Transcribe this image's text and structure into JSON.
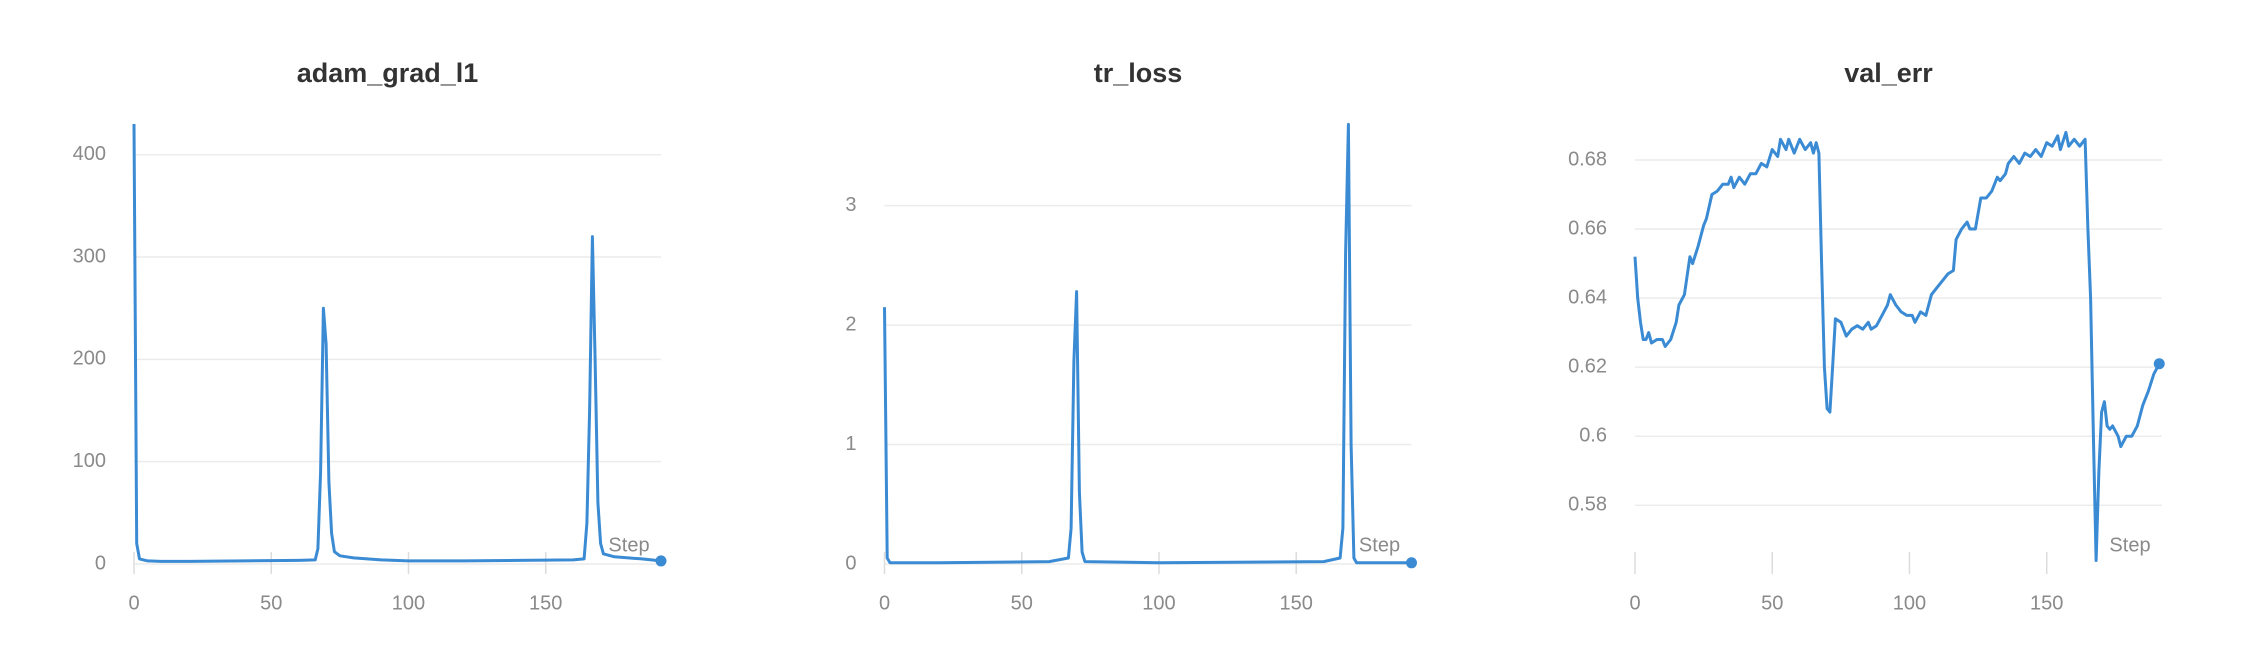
{
  "chart_data": [
    {
      "type": "line",
      "title": "adam_grad_l1",
      "x_label": "Step",
      "grid": true,
      "color": "#3a8bd4",
      "xlim": [
        0,
        192
      ],
      "xticks": [
        0,
        50,
        100,
        150
      ],
      "ylim": [
        0,
        432
      ],
      "yticks": [
        0,
        100,
        200,
        300,
        400
      ],
      "x": [
        0,
        1,
        2,
        5,
        10,
        20,
        40,
        60,
        66,
        67,
        68,
        69,
        70,
        71,
        72,
        73,
        75,
        80,
        90,
        100,
        120,
        140,
        160,
        164,
        165,
        166,
        167,
        168,
        169,
        170,
        171,
        175,
        185,
        192
      ],
      "values": [
        430,
        20,
        5,
        3,
        2.5,
        2.5,
        3,
        3.5,
        4,
        15,
        90,
        250,
        215,
        80,
        30,
        12,
        8,
        6,
        4,
        3,
        3,
        3.5,
        4,
        5,
        40,
        150,
        320,
        200,
        60,
        20,
        10,
        7,
        5,
        3
      ]
    },
    {
      "type": "line",
      "title": "tr_loss",
      "x_label": "Step",
      "grid": true,
      "color": "#3a8bd4",
      "xlim": [
        0,
        192
      ],
      "xticks": [
        0,
        50,
        100,
        150
      ],
      "ylim": [
        0,
        3.7
      ],
      "yticks": [
        0,
        1,
        2,
        3
      ],
      "x": [
        0,
        1,
        2,
        20,
        60,
        67,
        68,
        69,
        70,
        71,
        72,
        73,
        100,
        160,
        166,
        167,
        168,
        169,
        170,
        171,
        172,
        192
      ],
      "values": [
        2.15,
        0.05,
        0.01,
        0.01,
        0.02,
        0.05,
        0.3,
        1.7,
        2.28,
        0.6,
        0.1,
        0.02,
        0.01,
        0.02,
        0.05,
        0.3,
        2.6,
        3.68,
        1.0,
        0.05,
        0.01,
        0.01
      ]
    },
    {
      "type": "line",
      "title": "val_err",
      "x_label": "Step",
      "grid": true,
      "color": "#3a8bd4",
      "xlim": [
        0,
        192
      ],
      "xticks": [
        0,
        50,
        100,
        150
      ],
      "ylim": [
        0.563,
        0.691
      ],
      "yticks": [
        0.58,
        0.6,
        0.62,
        0.64,
        0.66,
        0.68
      ],
      "x": [
        0,
        1,
        2,
        3,
        4,
        5,
        6,
        8,
        10,
        11,
        13,
        15,
        16,
        18,
        20,
        21,
        23,
        25,
        26,
        28,
        30,
        32,
        34,
        35,
        36,
        38,
        40,
        42,
        44,
        46,
        48,
        50,
        52,
        53,
        55,
        56,
        58,
        60,
        62,
        64,
        65,
        66,
        67,
        68,
        69,
        70,
        71,
        72,
        73,
        75,
        77,
        79,
        81,
        83,
        85,
        86,
        88,
        90,
        92,
        93,
        95,
        97,
        99,
        101,
        102,
        104,
        106,
        108,
        110,
        112,
        114,
        116,
        117,
        119,
        121,
        122,
        124,
        126,
        128,
        130,
        132,
        133,
        135,
        136,
        138,
        140,
        142,
        144,
        146,
        148,
        150,
        152,
        154,
        155,
        157,
        158,
        160,
        162,
        164,
        165,
        166,
        167,
        168,
        169,
        170,
        171,
        172,
        173,
        174,
        176,
        177,
        179,
        181,
        183,
        185,
        187,
        189,
        191
      ],
      "values": [
        0.652,
        0.64,
        0.633,
        0.628,
        0.628,
        0.63,
        0.627,
        0.628,
        0.628,
        0.626,
        0.628,
        0.633,
        0.638,
        0.641,
        0.652,
        0.65,
        0.655,
        0.661,
        0.663,
        0.67,
        0.671,
        0.673,
        0.673,
        0.675,
        0.672,
        0.675,
        0.673,
        0.676,
        0.676,
        0.679,
        0.678,
        0.683,
        0.681,
        0.686,
        0.683,
        0.686,
        0.682,
        0.686,
        0.683,
        0.685,
        0.682,
        0.685,
        0.682,
        0.65,
        0.62,
        0.608,
        0.607,
        0.62,
        0.634,
        0.633,
        0.629,
        0.631,
        0.632,
        0.631,
        0.633,
        0.631,
        0.632,
        0.635,
        0.638,
        0.641,
        0.638,
        0.636,
        0.635,
        0.635,
        0.633,
        0.636,
        0.635,
        0.641,
        0.643,
        0.645,
        0.647,
        0.648,
        0.657,
        0.66,
        0.662,
        0.66,
        0.66,
        0.669,
        0.669,
        0.671,
        0.675,
        0.674,
        0.676,
        0.679,
        0.681,
        0.679,
        0.682,
        0.681,
        0.683,
        0.681,
        0.685,
        0.684,
        0.687,
        0.683,
        0.688,
        0.684,
        0.686,
        0.684,
        0.686,
        0.66,
        0.64,
        0.6,
        0.564,
        0.59,
        0.607,
        0.61,
        0.603,
        0.602,
        0.603,
        0.6,
        0.597,
        0.6,
        0.6,
        0.603,
        0.609,
        0.613,
        0.618,
        0.621
      ]
    }
  ]
}
